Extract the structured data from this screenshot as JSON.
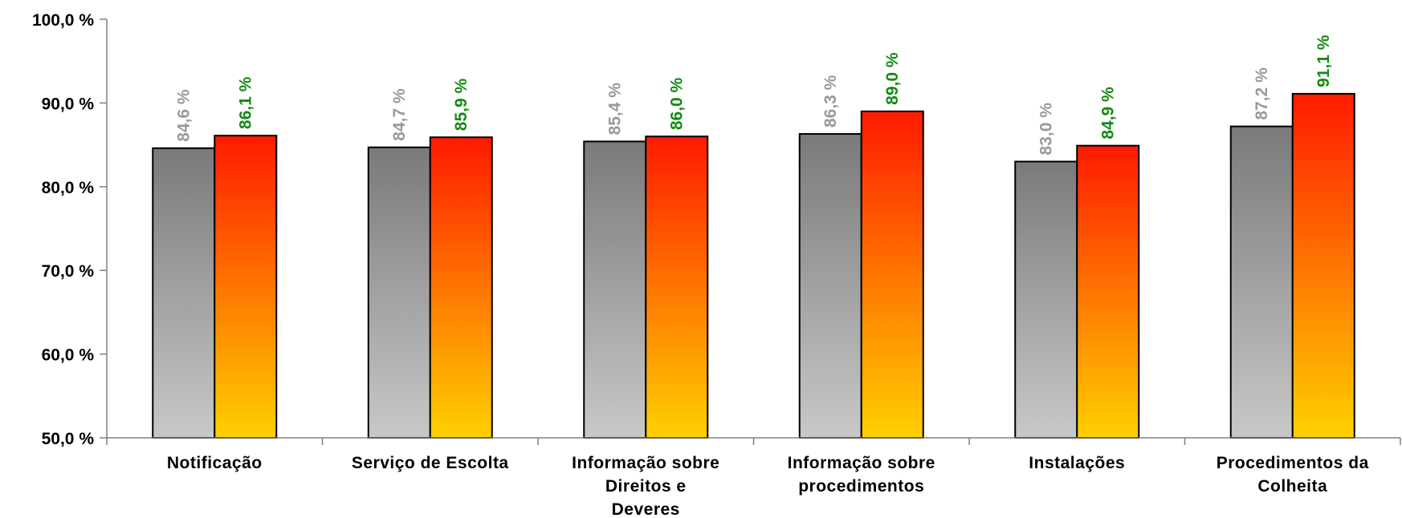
{
  "chart_data": {
    "type": "bar",
    "title": "",
    "xlabel": "",
    "ylabel": "",
    "ylim": [
      50,
      100
    ],
    "yticks": [
      {
        "value": 50,
        "label": "50,0 %"
      },
      {
        "value": 60,
        "label": "60,0 %"
      },
      {
        "value": 70,
        "label": "70,0 %"
      },
      {
        "value": 80,
        "label": "80,0 %"
      },
      {
        "value": 90,
        "label": "90,0 %"
      },
      {
        "value": 100,
        "label": "100,0 %"
      }
    ],
    "grid": false,
    "legend": "none",
    "categories": [
      [
        "Notificação"
      ],
      [
        "Serviço de Escolta"
      ],
      [
        "Informação sobre",
        "Direitos e",
        "Deveres"
      ],
      [
        "Informação sobre",
        "procedimentos"
      ],
      [
        "Instalações"
      ],
      [
        "Procedimentos da",
        "Colheita"
      ]
    ],
    "series": [
      {
        "values": [
          84.6,
          84.7,
          85.4,
          86.3,
          83.0,
          87.2
        ],
        "labels": [
          "84,6 %",
          "84,7 %",
          "85,4 %",
          "86,3 %",
          "83,0 %",
          "87,2 %"
        ],
        "label_color": "#999999",
        "gradient": [
          "#7a7a7a",
          "#c8c8c8"
        ]
      },
      {
        "values": [
          86.1,
          85.9,
          86.0,
          89.0,
          84.9,
          91.1
        ],
        "labels": [
          "86,1 %",
          "85,9 %",
          "86,0 %",
          "89,0 %",
          "84,9 %",
          "91,1 %"
        ],
        "label_color": "#138a13",
        "gradient": [
          "#ff1a00",
          "#ffd000"
        ]
      }
    ]
  }
}
